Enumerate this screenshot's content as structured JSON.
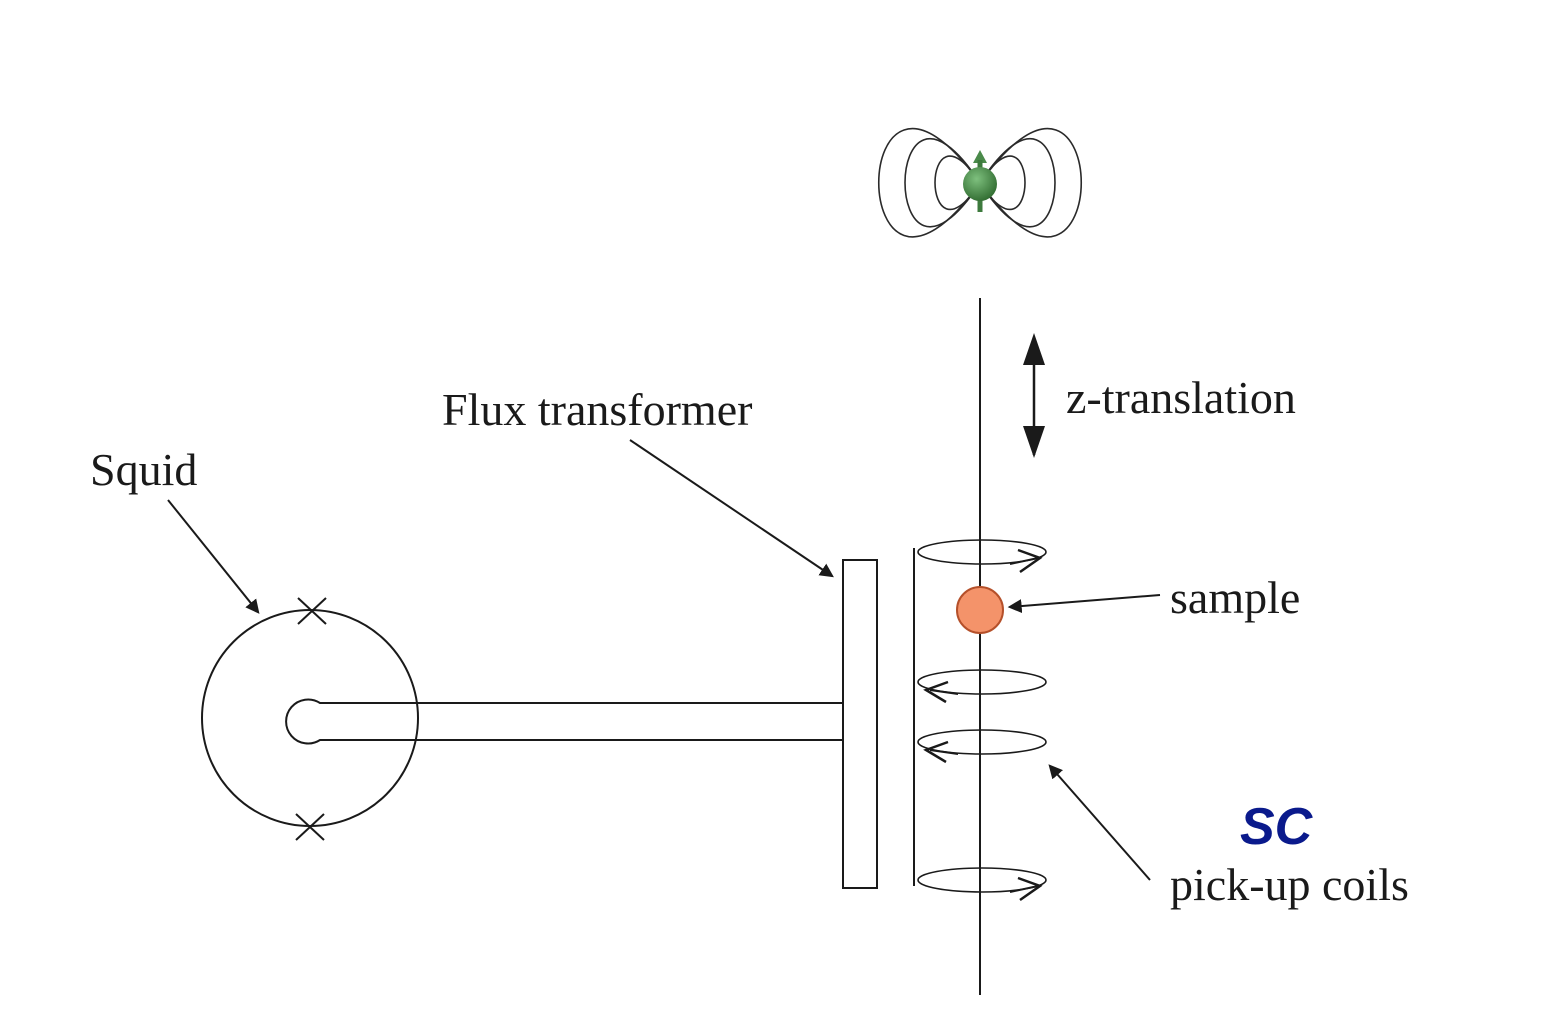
{
  "labels": {
    "squid": "Squid",
    "flux_transformer": "Flux transformer",
    "z_translation": "z-translation",
    "sample": "sample",
    "sc": "SC",
    "pickup_coils": "pick-up coils"
  },
  "colors": {
    "line": "#1a1a1a",
    "sample_fill": "#f4936a",
    "sample_stroke": "#b5502a",
    "dipole_green": "#4a8a4a",
    "sc_text": "#0a1a8c"
  }
}
